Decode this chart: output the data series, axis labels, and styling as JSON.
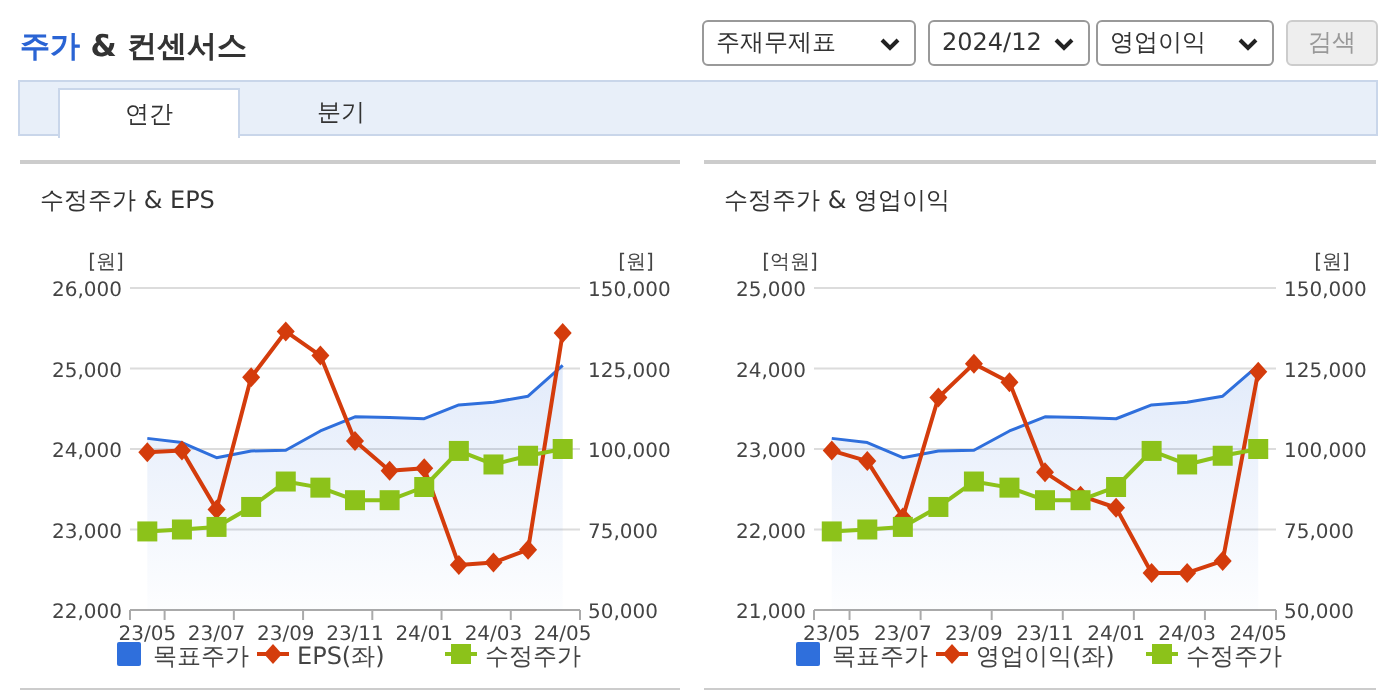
{
  "chart_data": [
    {
      "type": "other",
      "title": "주가 & 컨센서스",
      "annotations": [
        "주재무제표",
        "2024/12",
        "영업이익",
        "검색",
        "연간",
        "분기"
      ]
    },
    {
      "type": "line",
      "title": "수정주가 & EPS",
      "ylabel": "[원]",
      "y2label": "[원]",
      "categories": [
        "23/05",
        null,
        "23/07",
        null,
        "23/09",
        null,
        "23/11",
        null,
        "24/01",
        null,
        "24/03",
        null,
        "24/05"
      ],
      "series": [
        {
          "name": "목표주가",
          "type": "area",
          "axis": "y2",
          "color": "#2f6fdc",
          "values": [
            103300,
            102000,
            97300,
            99400,
            99600,
            105600,
            110000,
            109800,
            109400,
            113700,
            114500,
            116400,
            126000
          ]
        },
        {
          "name": "EPS(좌)",
          "type": "line",
          "marker": "diamond",
          "color": "#d43c0c",
          "values": [
            23960,
            23980,
            23250,
            24890,
            25460,
            25160,
            24100,
            23730,
            23760,
            22560,
            22590,
            22750,
            25440
          ]
        },
        {
          "name": "수정주가",
          "type": "line",
          "axis": "y2",
          "marker": "square",
          "color": "#8cc21a",
          "values": [
            74400,
            75000,
            75800,
            82000,
            89900,
            88000,
            84100,
            84100,
            88200,
            99400,
            95200,
            97900,
            100000
          ]
        }
      ],
      "ylim": [
        22000,
        26000
      ],
      "yticks": [
        {
          "value": 22000,
          "label": "22,000"
        },
        {
          "value": 23000,
          "label": "23,000"
        },
        {
          "value": 24000,
          "label": "24,000"
        },
        {
          "value": 25000,
          "label": "25,000"
        },
        {
          "value": 26000,
          "label": "26,000"
        }
      ],
      "y2lim": [
        50000,
        150000
      ],
      "y2ticks": [
        {
          "value": 50000,
          "label": "50,000"
        },
        {
          "value": 75000,
          "label": "75,000"
        },
        {
          "value": 100000,
          "label": "100,000"
        },
        {
          "value": 125000,
          "label": "125,000"
        },
        {
          "value": 150000,
          "label": "150,000"
        }
      ],
      "grid": "y",
      "legend": "bottom"
    },
    {
      "type": "line",
      "title": "수정주가 & 영업이익",
      "ylabel": "[억원]",
      "y2label": "[원]",
      "categories": [
        "23/05",
        null,
        "23/07",
        null,
        "23/09",
        null,
        "23/11",
        null,
        "24/01",
        null,
        "24/03",
        null,
        "24/05"
      ],
      "series": [
        {
          "name": "목표주가",
          "type": "area",
          "axis": "y2",
          "color": "#2f6fdc",
          "values": [
            103300,
            102000,
            97300,
            99400,
            99600,
            105600,
            110000,
            109800,
            109400,
            113700,
            114500,
            116400,
            126000
          ]
        },
        {
          "name": "영업이익(좌)",
          "type": "line",
          "marker": "diamond",
          "color": "#d43c0c",
          "values": [
            22980,
            22850,
            22150,
            23640,
            24060,
            23830,
            22710,
            22420,
            22270,
            21460,
            21460,
            21610,
            23960
          ]
        },
        {
          "name": "수정주가",
          "type": "line",
          "axis": "y2",
          "marker": "square",
          "color": "#8cc21a",
          "values": [
            74400,
            75000,
            75800,
            82000,
            89900,
            88000,
            84100,
            84100,
            88200,
            99400,
            95200,
            97900,
            100000
          ]
        }
      ],
      "ylim": [
        21000,
        25000
      ],
      "yticks": [
        {
          "value": 21000,
          "label": "21,000"
        },
        {
          "value": 22000,
          "label": "22,000"
        },
        {
          "value": 23000,
          "label": "23,000"
        },
        {
          "value": 24000,
          "label": "24,000"
        },
        {
          "value": 25000,
          "label": "25,000"
        }
      ],
      "y2lim": [
        50000,
        150000
      ],
      "y2ticks": [
        {
          "value": 50000,
          "label": "50,000"
        },
        {
          "value": 75000,
          "label": "75,000"
        },
        {
          "value": 100000,
          "label": "100,000"
        },
        {
          "value": 125000,
          "label": "125,000"
        },
        {
          "value": 150000,
          "label": "150,000"
        }
      ],
      "grid": "y",
      "legend": "bottom"
    }
  ]
}
